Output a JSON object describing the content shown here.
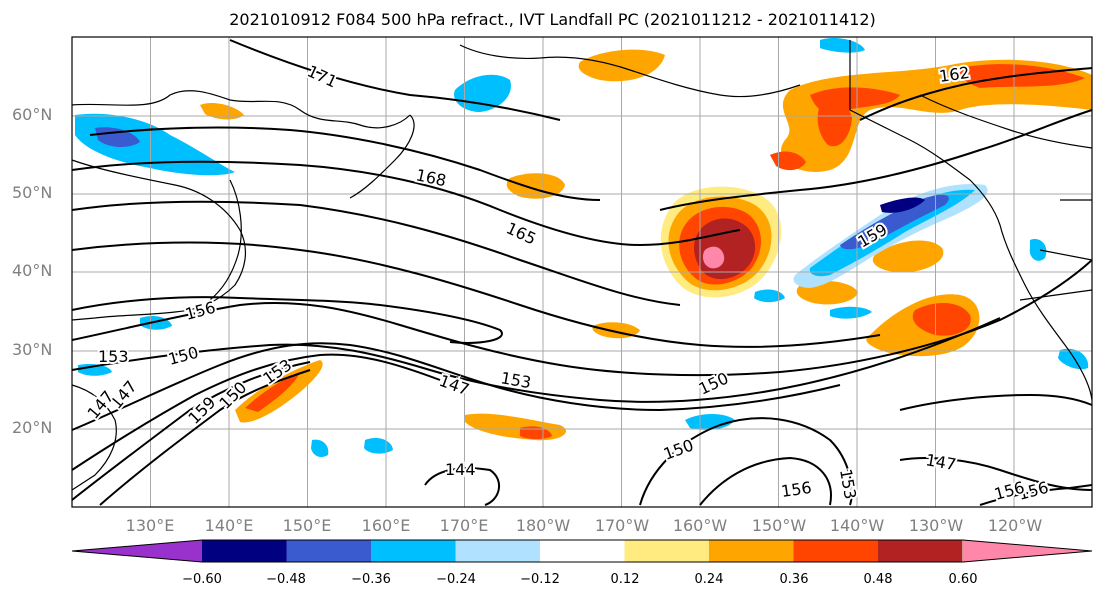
{
  "title": "2021010912 F084 500 hPa refract., IVT Landfall PC (2021011212 - 2021011412)",
  "latitudes": [
    "60°N",
    "50°N",
    "40°N",
    "30°N",
    "20°N"
  ],
  "longitudes": [
    "130°E",
    "140°E",
    "150°E",
    "160°E",
    "170°E",
    "180°W",
    "170°W",
    "160°W",
    "150°W",
    "140°W",
    "130°W",
    "120°W"
  ],
  "contour_labels": [
    "171",
    "168",
    "165",
    "162",
    "159",
    "156",
    "153",
    "150",
    "147",
    "153",
    "150",
    "147",
    "144",
    "150",
    "156",
    "153",
    "147",
    "156",
    "156",
    "159",
    "153",
    "150",
    "147"
  ],
  "colorbar": {
    "ticks": [
      "−0.60",
      "−0.48",
      "−0.36",
      "−0.24",
      "−0.12",
      "0.12",
      "0.24",
      "0.36",
      "0.48",
      "0.60"
    ],
    "colors": [
      "#9932cc",
      "#000080",
      "#3a5bd0",
      "#00bfff",
      "#b0e2ff",
      "#ffffff",
      "#ffeb80",
      "#ffa500",
      "#ff4500",
      "#b22222",
      "#ff88aa"
    ]
  }
}
